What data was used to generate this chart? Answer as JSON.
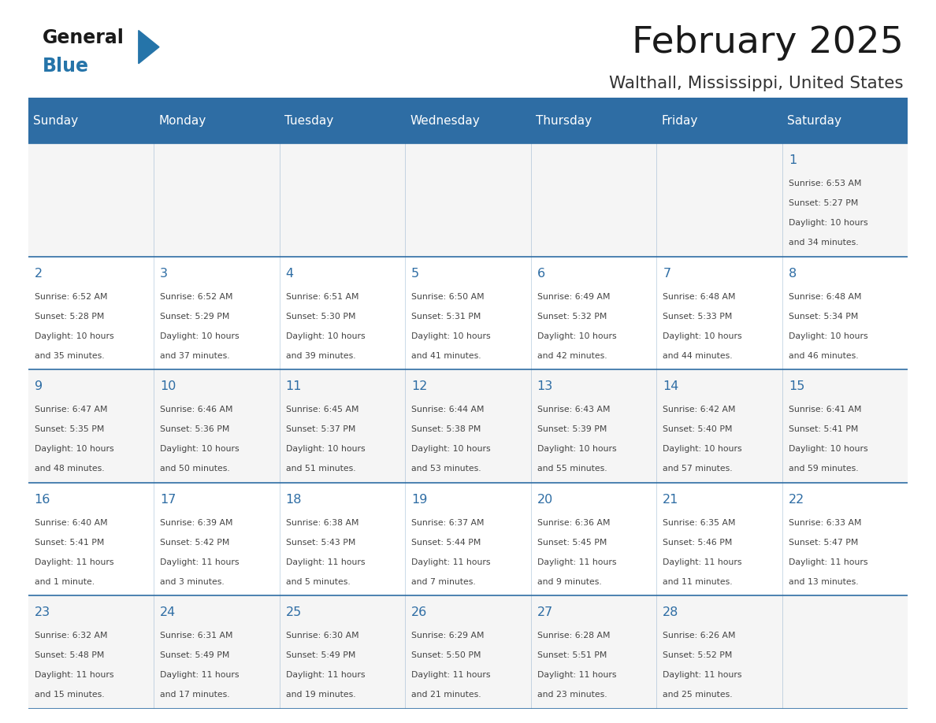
{
  "title": "February 2025",
  "subtitle": "Walthall, Mississippi, United States",
  "header_bg": "#2e6da4",
  "header_text_color": "#ffffff",
  "day_headers": [
    "Sunday",
    "Monday",
    "Tuesday",
    "Wednesday",
    "Thursday",
    "Friday",
    "Saturday"
  ],
  "line_color": "#2e6da4",
  "day_num_color": "#2e6da4",
  "cell_text_color": "#444444",
  "cell_bg_odd": "#f5f5f5",
  "cell_bg_even": "#ffffff",
  "calendar_data": [
    [
      null,
      null,
      null,
      null,
      null,
      null,
      {
        "day": 1,
        "sunrise": "6:53 AM",
        "sunset": "5:27 PM",
        "daylight": "10 hours\nand 34 minutes."
      }
    ],
    [
      {
        "day": 2,
        "sunrise": "6:52 AM",
        "sunset": "5:28 PM",
        "daylight": "10 hours\nand 35 minutes."
      },
      {
        "day": 3,
        "sunrise": "6:52 AM",
        "sunset": "5:29 PM",
        "daylight": "10 hours\nand 37 minutes."
      },
      {
        "day": 4,
        "sunrise": "6:51 AM",
        "sunset": "5:30 PM",
        "daylight": "10 hours\nand 39 minutes."
      },
      {
        "day": 5,
        "sunrise": "6:50 AM",
        "sunset": "5:31 PM",
        "daylight": "10 hours\nand 41 minutes."
      },
      {
        "day": 6,
        "sunrise": "6:49 AM",
        "sunset": "5:32 PM",
        "daylight": "10 hours\nand 42 minutes."
      },
      {
        "day": 7,
        "sunrise": "6:48 AM",
        "sunset": "5:33 PM",
        "daylight": "10 hours\nand 44 minutes."
      },
      {
        "day": 8,
        "sunrise": "6:48 AM",
        "sunset": "5:34 PM",
        "daylight": "10 hours\nand 46 minutes."
      }
    ],
    [
      {
        "day": 9,
        "sunrise": "6:47 AM",
        "sunset": "5:35 PM",
        "daylight": "10 hours\nand 48 minutes."
      },
      {
        "day": 10,
        "sunrise": "6:46 AM",
        "sunset": "5:36 PM",
        "daylight": "10 hours\nand 50 minutes."
      },
      {
        "day": 11,
        "sunrise": "6:45 AM",
        "sunset": "5:37 PM",
        "daylight": "10 hours\nand 51 minutes."
      },
      {
        "day": 12,
        "sunrise": "6:44 AM",
        "sunset": "5:38 PM",
        "daylight": "10 hours\nand 53 minutes."
      },
      {
        "day": 13,
        "sunrise": "6:43 AM",
        "sunset": "5:39 PM",
        "daylight": "10 hours\nand 55 minutes."
      },
      {
        "day": 14,
        "sunrise": "6:42 AM",
        "sunset": "5:40 PM",
        "daylight": "10 hours\nand 57 minutes."
      },
      {
        "day": 15,
        "sunrise": "6:41 AM",
        "sunset": "5:41 PM",
        "daylight": "10 hours\nand 59 minutes."
      }
    ],
    [
      {
        "day": 16,
        "sunrise": "6:40 AM",
        "sunset": "5:41 PM",
        "daylight": "11 hours\nand 1 minute."
      },
      {
        "day": 17,
        "sunrise": "6:39 AM",
        "sunset": "5:42 PM",
        "daylight": "11 hours\nand 3 minutes."
      },
      {
        "day": 18,
        "sunrise": "6:38 AM",
        "sunset": "5:43 PM",
        "daylight": "11 hours\nand 5 minutes."
      },
      {
        "day": 19,
        "sunrise": "6:37 AM",
        "sunset": "5:44 PM",
        "daylight": "11 hours\nand 7 minutes."
      },
      {
        "day": 20,
        "sunrise": "6:36 AM",
        "sunset": "5:45 PM",
        "daylight": "11 hours\nand 9 minutes."
      },
      {
        "day": 21,
        "sunrise": "6:35 AM",
        "sunset": "5:46 PM",
        "daylight": "11 hours\nand 11 minutes."
      },
      {
        "day": 22,
        "sunrise": "6:33 AM",
        "sunset": "5:47 PM",
        "daylight": "11 hours\nand 13 minutes."
      }
    ],
    [
      {
        "day": 23,
        "sunrise": "6:32 AM",
        "sunset": "5:48 PM",
        "daylight": "11 hours\nand 15 minutes."
      },
      {
        "day": 24,
        "sunrise": "6:31 AM",
        "sunset": "5:49 PM",
        "daylight": "11 hours\nand 17 minutes."
      },
      {
        "day": 25,
        "sunrise": "6:30 AM",
        "sunset": "5:49 PM",
        "daylight": "11 hours\nand 19 minutes."
      },
      {
        "day": 26,
        "sunrise": "6:29 AM",
        "sunset": "5:50 PM",
        "daylight": "11 hours\nand 21 minutes."
      },
      {
        "day": 27,
        "sunrise": "6:28 AM",
        "sunset": "5:51 PM",
        "daylight": "11 hours\nand 23 minutes."
      },
      {
        "day": 28,
        "sunrise": "6:26 AM",
        "sunset": "5:52 PM",
        "daylight": "11 hours\nand 25 minutes."
      },
      null
    ]
  ]
}
